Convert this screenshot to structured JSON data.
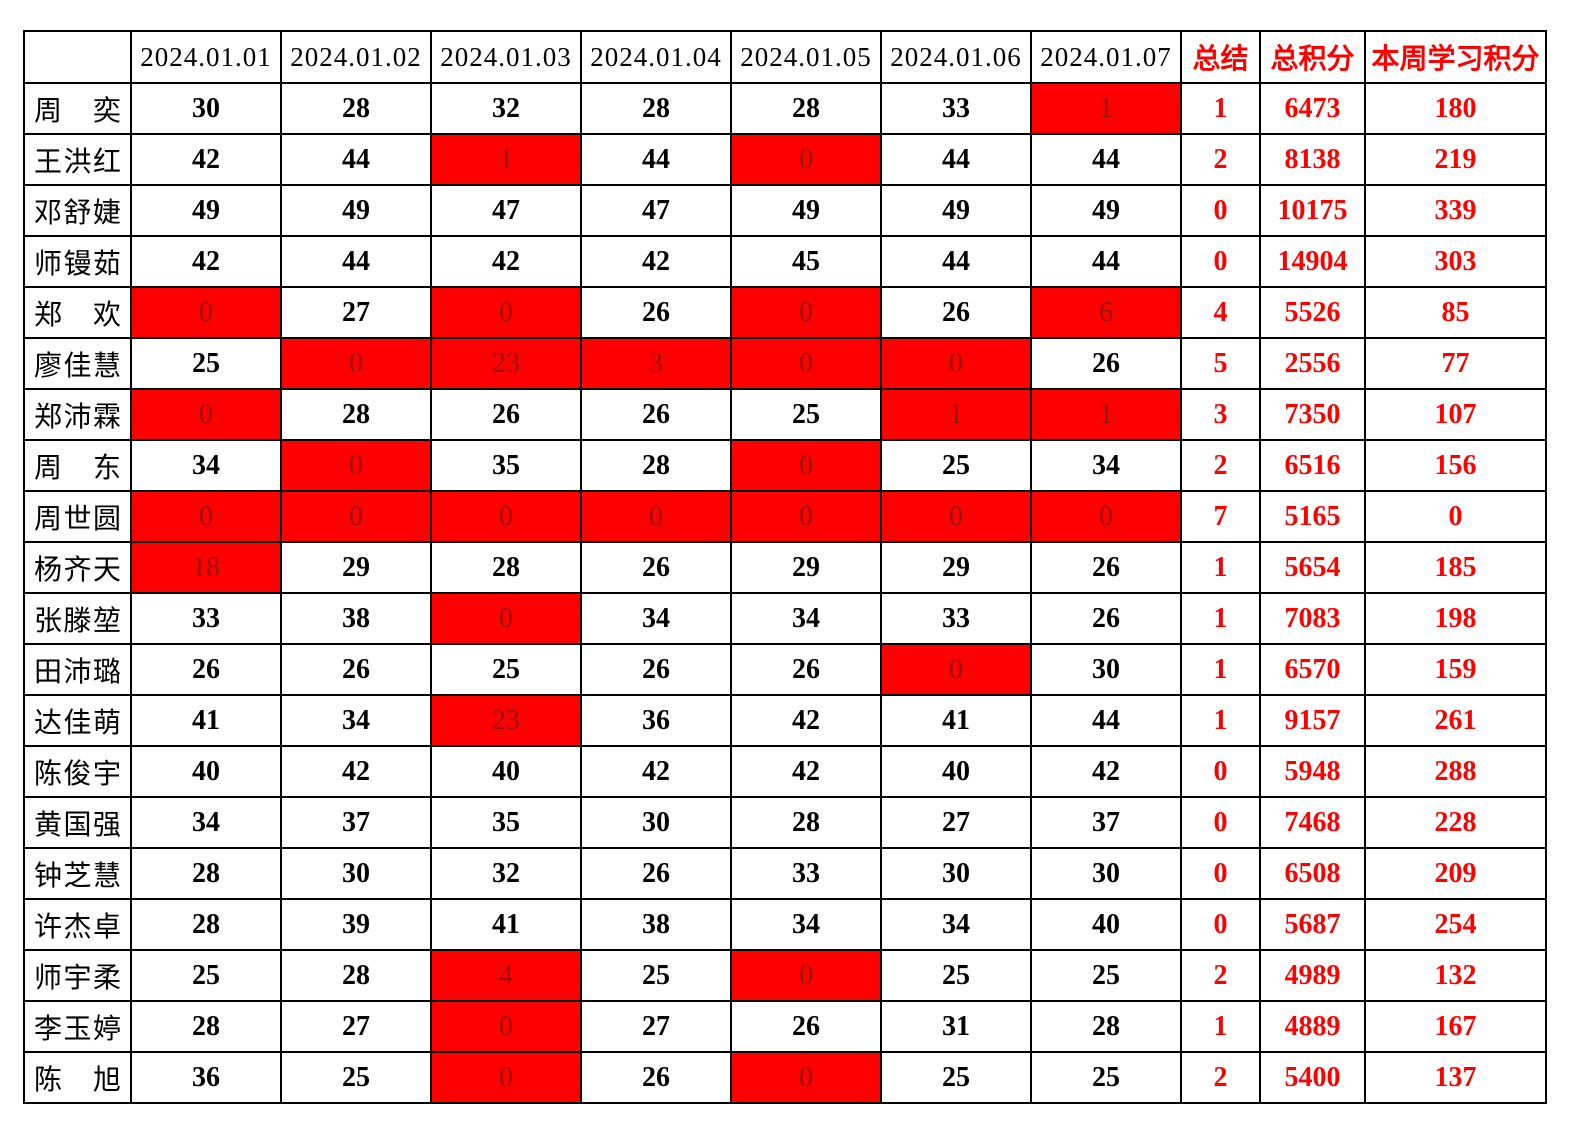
{
  "colors": {
    "highlight_background": "#ff0000",
    "highlight_text": "#9e0b0b",
    "accent_text": "#ff0000",
    "grid_line": "#000000"
  },
  "table": {
    "corner_label": "",
    "date_headers": [
      "2024.01.01",
      "2024.01.02",
      "2024.01.03",
      "2024.01.04",
      "2024.01.05",
      "2024.01.06",
      "2024.01.07"
    ],
    "summary_header": "总结",
    "total_header": "总积分",
    "week_header": "本周学习积分",
    "rows": [
      {
        "name": "周奕",
        "days": [
          {
            "v": "30"
          },
          {
            "v": "28"
          },
          {
            "v": "32"
          },
          {
            "v": "28"
          },
          {
            "v": "28"
          },
          {
            "v": "33"
          },
          {
            "v": "1",
            "red": true
          }
        ],
        "summary": "1",
        "total": "6473",
        "week": "180"
      },
      {
        "name": "王洪红",
        "days": [
          {
            "v": "42"
          },
          {
            "v": "44"
          },
          {
            "v": "1",
            "red": true
          },
          {
            "v": "44"
          },
          {
            "v": "0",
            "red": true
          },
          {
            "v": "44"
          },
          {
            "v": "44"
          }
        ],
        "summary": "2",
        "total": "8138",
        "week": "219"
      },
      {
        "name": "邓舒婕",
        "days": [
          {
            "v": "49"
          },
          {
            "v": "49"
          },
          {
            "v": "47"
          },
          {
            "v": "47"
          },
          {
            "v": "49"
          },
          {
            "v": "49"
          },
          {
            "v": "49"
          }
        ],
        "summary": "0",
        "total": "10175",
        "week": "339"
      },
      {
        "name": "师镘茹",
        "days": [
          {
            "v": "42"
          },
          {
            "v": "44"
          },
          {
            "v": "42"
          },
          {
            "v": "42"
          },
          {
            "v": "45"
          },
          {
            "v": "44"
          },
          {
            "v": "44"
          }
        ],
        "summary": "0",
        "total": "14904",
        "week": "303"
      },
      {
        "name": "郑欢",
        "days": [
          {
            "v": "0",
            "red": true
          },
          {
            "v": "27"
          },
          {
            "v": "0",
            "red": true
          },
          {
            "v": "26"
          },
          {
            "v": "0",
            "red": true
          },
          {
            "v": "26"
          },
          {
            "v": "6",
            "red": true
          }
        ],
        "summary": "4",
        "total": "5526",
        "week": "85"
      },
      {
        "name": "廖佳慧",
        "days": [
          {
            "v": "25"
          },
          {
            "v": "0",
            "red": true
          },
          {
            "v": "23",
            "red": true
          },
          {
            "v": "3",
            "red": true
          },
          {
            "v": "0",
            "red": true
          },
          {
            "v": "0",
            "red": true
          },
          {
            "v": "26"
          }
        ],
        "summary": "5",
        "total": "2556",
        "week": "77"
      },
      {
        "name": "郑沛霖",
        "days": [
          {
            "v": "0",
            "red": true
          },
          {
            "v": "28"
          },
          {
            "v": "26"
          },
          {
            "v": "26"
          },
          {
            "v": "25"
          },
          {
            "v": "1",
            "red": true
          },
          {
            "v": "1",
            "red": true
          }
        ],
        "summary": "3",
        "total": "7350",
        "week": "107"
      },
      {
        "name": "周东",
        "days": [
          {
            "v": "34"
          },
          {
            "v": "0",
            "red": true
          },
          {
            "v": "35"
          },
          {
            "v": "28"
          },
          {
            "v": "0",
            "red": true
          },
          {
            "v": "25"
          },
          {
            "v": "34"
          }
        ],
        "summary": "2",
        "total": "6516",
        "week": "156"
      },
      {
        "name": "周世圆",
        "days": [
          {
            "v": "0",
            "red": true
          },
          {
            "v": "0",
            "red": true
          },
          {
            "v": "0",
            "red": true
          },
          {
            "v": "0",
            "red": true
          },
          {
            "v": "0",
            "red": true
          },
          {
            "v": "0",
            "red": true
          },
          {
            "v": "0",
            "red": true
          }
        ],
        "summary": "7",
        "total": "5165",
        "week": "0"
      },
      {
        "name": "杨齐天",
        "days": [
          {
            "v": "18",
            "red": true
          },
          {
            "v": "29"
          },
          {
            "v": "28"
          },
          {
            "v": "26"
          },
          {
            "v": "29"
          },
          {
            "v": "29"
          },
          {
            "v": "26"
          }
        ],
        "summary": "1",
        "total": "5654",
        "week": "185"
      },
      {
        "name": "张滕堃",
        "days": [
          {
            "v": "33"
          },
          {
            "v": "38"
          },
          {
            "v": "0",
            "red": true
          },
          {
            "v": "34"
          },
          {
            "v": "34"
          },
          {
            "v": "33"
          },
          {
            "v": "26"
          }
        ],
        "summary": "1",
        "total": "7083",
        "week": "198"
      },
      {
        "name": "田沛璐",
        "days": [
          {
            "v": "26"
          },
          {
            "v": "26"
          },
          {
            "v": "25"
          },
          {
            "v": "26"
          },
          {
            "v": "26"
          },
          {
            "v": "0",
            "red": true
          },
          {
            "v": "30"
          }
        ],
        "summary": "1",
        "total": "6570",
        "week": "159"
      },
      {
        "name": "达佳萌",
        "days": [
          {
            "v": "41"
          },
          {
            "v": "34"
          },
          {
            "v": "23",
            "red": true
          },
          {
            "v": "36"
          },
          {
            "v": "42"
          },
          {
            "v": "41"
          },
          {
            "v": "44"
          }
        ],
        "summary": "1",
        "total": "9157",
        "week": "261"
      },
      {
        "name": "陈俊宇",
        "days": [
          {
            "v": "40"
          },
          {
            "v": "42"
          },
          {
            "v": "40"
          },
          {
            "v": "42"
          },
          {
            "v": "42"
          },
          {
            "v": "40"
          },
          {
            "v": "42"
          }
        ],
        "summary": "0",
        "total": "5948",
        "week": "288"
      },
      {
        "name": "黄国强",
        "days": [
          {
            "v": "34"
          },
          {
            "v": "37"
          },
          {
            "v": "35"
          },
          {
            "v": "30"
          },
          {
            "v": "28"
          },
          {
            "v": "27"
          },
          {
            "v": "37"
          }
        ],
        "summary": "0",
        "total": "7468",
        "week": "228"
      },
      {
        "name": "钟芝慧",
        "days": [
          {
            "v": "28"
          },
          {
            "v": "30"
          },
          {
            "v": "32"
          },
          {
            "v": "26"
          },
          {
            "v": "33"
          },
          {
            "v": "30"
          },
          {
            "v": "30"
          }
        ],
        "summary": "0",
        "total": "6508",
        "week": "209"
      },
      {
        "name": "许杰卓",
        "days": [
          {
            "v": "28"
          },
          {
            "v": "39"
          },
          {
            "v": "41"
          },
          {
            "v": "38"
          },
          {
            "v": "34"
          },
          {
            "v": "34"
          },
          {
            "v": "40"
          }
        ],
        "summary": "0",
        "total": "5687",
        "week": "254"
      },
      {
        "name": "师宇柔",
        "days": [
          {
            "v": "25"
          },
          {
            "v": "28"
          },
          {
            "v": "4",
            "red": true
          },
          {
            "v": "25"
          },
          {
            "v": "0",
            "red": true
          },
          {
            "v": "25"
          },
          {
            "v": "25"
          }
        ],
        "summary": "2",
        "total": "4989",
        "week": "132"
      },
      {
        "name": "李玉婷",
        "days": [
          {
            "v": "28"
          },
          {
            "v": "27"
          },
          {
            "v": "0",
            "red": true
          },
          {
            "v": "27"
          },
          {
            "v": "26"
          },
          {
            "v": "31"
          },
          {
            "v": "28"
          }
        ],
        "summary": "1",
        "total": "4889",
        "week": "167"
      },
      {
        "name": "陈旭",
        "days": [
          {
            "v": "36"
          },
          {
            "v": "25"
          },
          {
            "v": "0",
            "red": true
          },
          {
            "v": "26"
          },
          {
            "v": "0",
            "red": true
          },
          {
            "v": "25"
          },
          {
            "v": "25"
          }
        ],
        "summary": "2",
        "total": "5400",
        "week": "137"
      }
    ]
  }
}
